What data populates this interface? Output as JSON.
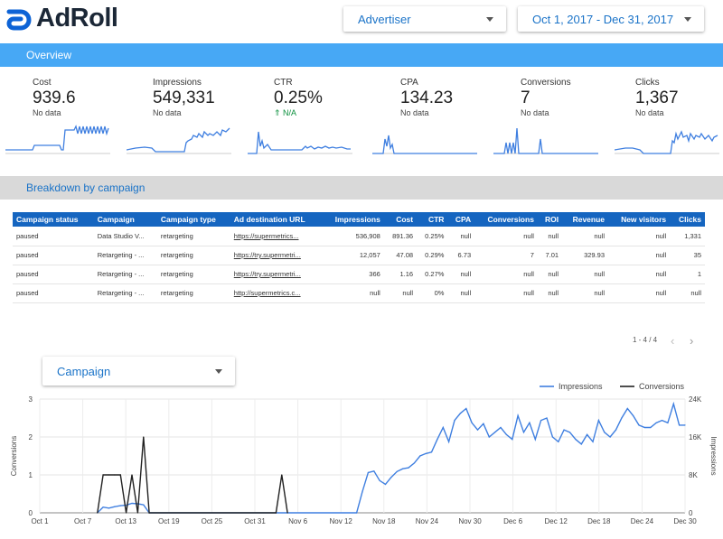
{
  "brand": {
    "name": "AdRoll",
    "color": "#0d63d6"
  },
  "header": {
    "advertiser_label": "Advertiser",
    "date_range": "Oct 1, 2017 - Dec 31, 2017"
  },
  "overview": {
    "title": "Overview"
  },
  "kpis": [
    {
      "label": "Cost",
      "value": "939.6",
      "sub": "No data"
    },
    {
      "label": "Impressions",
      "value": "549,331",
      "sub": "No data"
    },
    {
      "label": "CTR",
      "value": "0.25%",
      "sub": "⇑ N/A"
    },
    {
      "label": "CPA",
      "value": "134.23",
      "sub": "No data"
    },
    {
      "label": "Conversions",
      "value": "7",
      "sub": "No data"
    },
    {
      "label": "Clicks",
      "value": "1,367",
      "sub": "No data"
    }
  ],
  "breakdown": {
    "title": "Breakdown by campaign"
  },
  "table": {
    "headers": [
      "Campaign status",
      "Campaign",
      "Campaign type",
      "Ad destination URL",
      "Impressions",
      "Cost",
      "CTR",
      "CPA",
      "Conversions",
      "ROI",
      "Revenue",
      "New visitors",
      "Clicks"
    ],
    "rows": [
      [
        "paused",
        "Data Studio V...",
        "retargeting",
        "https://supermetrics...",
        "536,908",
        "891.36",
        "0.25%",
        "null",
        "null",
        "null",
        "null",
        "null",
        "1,331"
      ],
      [
        "paused",
        "Retargeting - ...",
        "retargeting",
        "https://try.supermetri...",
        "12,057",
        "47.08",
        "0.29%",
        "6.73",
        "7",
        "7.01",
        "329.93",
        "null",
        "35"
      ],
      [
        "paused",
        "Retargeting - ...",
        "retargeting",
        "https://try.supermetri...",
        "366",
        "1.16",
        "0.27%",
        "null",
        "null",
        "null",
        "null",
        "null",
        "1"
      ],
      [
        "paused",
        "Retargeting - ...",
        "retargeting",
        "http://supermetrics.c...",
        "null",
        "null",
        "0%",
        "null",
        "null",
        "null",
        "null",
        "null",
        "null"
      ]
    ],
    "pager": "1 - 4 / 4"
  },
  "chart_control": {
    "label": "Campaign"
  },
  "chart_data": {
    "type": "line",
    "x": [
      "Oct 1",
      "Oct 7",
      "Oct 13",
      "Oct 19",
      "Oct 25",
      "Oct 31",
      "Nov 6",
      "Nov 12",
      "Nov 18",
      "Nov 24",
      "Nov 30",
      "Dec 6",
      "Dec 12",
      "Dec 18",
      "Dec 24",
      "Dec 30"
    ],
    "ylabel_left": "Conversions",
    "ylabel_right": "Impressions",
    "y_left_ticks": [
      "0",
      "1",
      "2",
      "3"
    ],
    "y_right_ticks": [
      "0",
      "8K",
      "16K",
      "24K"
    ],
    "ylim_left": [
      0,
      3
    ],
    "ylim_right": [
      0,
      24000
    ],
    "legend_position": "top-right",
    "series": [
      {
        "name": "Impressions",
        "color": "#3f7fe0",
        "axis": "right",
        "points": [
          [
            10,
            0
          ],
          [
            11,
            1200
          ],
          [
            12,
            1000
          ],
          [
            13,
            1300
          ],
          [
            14,
            1500
          ],
          [
            15,
            1600
          ],
          [
            16,
            2000
          ],
          [
            17,
            1900
          ],
          [
            18,
            1700
          ],
          [
            19,
            0
          ],
          [
            55,
            0
          ],
          [
            56,
            4500
          ],
          [
            57,
            8500
          ],
          [
            58,
            8800
          ],
          [
            59,
            6800
          ],
          [
            60,
            6000
          ],
          [
            61,
            7500
          ],
          [
            62,
            8700
          ],
          [
            63,
            9300
          ],
          [
            64,
            9500
          ],
          [
            65,
            10500
          ],
          [
            66,
            12000
          ],
          [
            67,
            12500
          ],
          [
            68,
            12800
          ],
          [
            69,
            15500
          ],
          [
            70,
            18000
          ],
          [
            71,
            15000
          ],
          [
            72,
            19500
          ],
          [
            73,
            21000
          ],
          [
            74,
            22000
          ],
          [
            75,
            19000
          ],
          [
            76,
            17500
          ],
          [
            77,
            18800
          ],
          [
            78,
            16000
          ],
          [
            79,
            17000
          ],
          [
            80,
            18000
          ],
          [
            81,
            16500
          ],
          [
            82,
            15500
          ],
          [
            83,
            20500
          ],
          [
            84,
            17000
          ],
          [
            85,
            19000
          ],
          [
            86,
            15500
          ],
          [
            87,
            19500
          ],
          [
            88,
            20000
          ],
          [
            89,
            16000
          ],
          [
            90,
            15000
          ],
          [
            91,
            17500
          ],
          [
            92,
            17000
          ],
          [
            93,
            15500
          ],
          [
            94,
            14500
          ],
          [
            95,
            16500
          ],
          [
            96,
            15000
          ],
          [
            97,
            19500
          ],
          [
            98,
            17000
          ],
          [
            99,
            16000
          ],
          [
            100,
            17500
          ],
          [
            101,
            20000
          ],
          [
            102,
            22000
          ],
          [
            103,
            20500
          ],
          [
            104,
            18500
          ],
          [
            105,
            18000
          ],
          [
            106,
            18000
          ],
          [
            107,
            19000
          ],
          [
            108,
            19500
          ],
          [
            109,
            19000
          ],
          [
            110,
            23000
          ],
          [
            111,
            18500
          ],
          [
            112,
            18500
          ]
        ]
      },
      {
        "name": "Conversions",
        "color": "#212121",
        "axis": "left",
        "points": [
          [
            10,
            0
          ],
          [
            11,
            1
          ],
          [
            12,
            1
          ],
          [
            13,
            1
          ],
          [
            14,
            1
          ],
          [
            15,
            0
          ],
          [
            16,
            1
          ],
          [
            17,
            0
          ],
          [
            18,
            2
          ],
          [
            19,
            0
          ],
          [
            41,
            0
          ],
          [
            42,
            1
          ],
          [
            43,
            0
          ]
        ]
      }
    ],
    "x_max_index": 112
  }
}
